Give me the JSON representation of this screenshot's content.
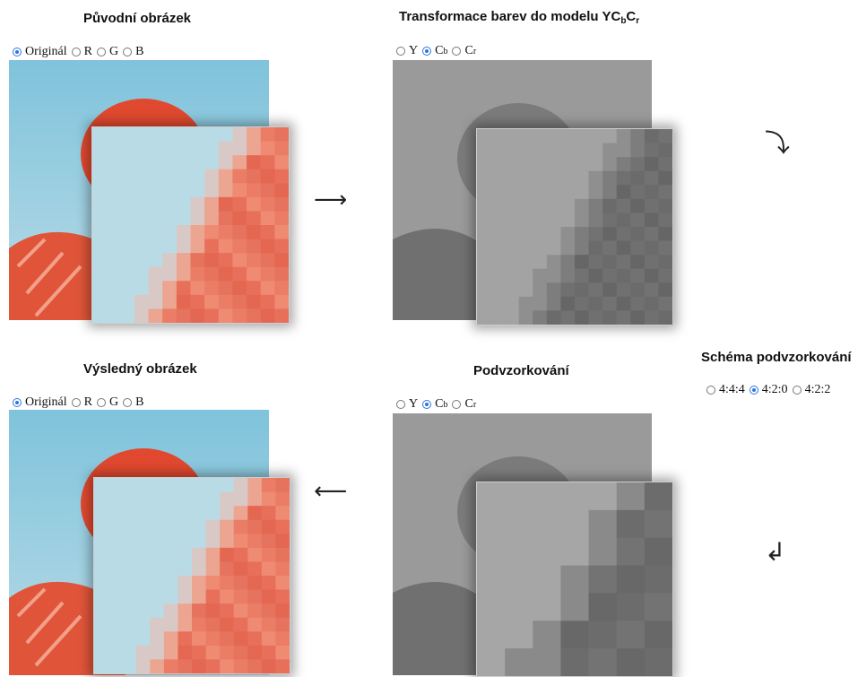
{
  "panels": {
    "original": {
      "title": "Původní obrázek",
      "options": [
        {
          "label": "Originál",
          "checked": true
        },
        {
          "label": "R",
          "checked": false
        },
        {
          "label": "G",
          "checked": false
        },
        {
          "label": "B",
          "checked": false
        }
      ]
    },
    "transform": {
      "title_prefix": "Transformace barev do modelu YC",
      "title_sub1": "b",
      "title_mid": "C",
      "title_sub2": "r",
      "options": [
        {
          "label": "Y",
          "sub": "",
          "checked": false
        },
        {
          "label": "C",
          "sub": "b",
          "checked": true
        },
        {
          "label": "C",
          "sub": "r",
          "checked": false
        }
      ]
    },
    "result": {
      "title": "Výsledný obrázek",
      "options": [
        {
          "label": "Originál",
          "checked": true
        },
        {
          "label": "R",
          "checked": false
        },
        {
          "label": "G",
          "checked": false
        },
        {
          "label": "B",
          "checked": false
        }
      ]
    },
    "subsampling": {
      "title": "Podvzorkování",
      "options": [
        {
          "label": "Y",
          "sub": "",
          "checked": false
        },
        {
          "label": "C",
          "sub": "b",
          "checked": true
        },
        {
          "label": "C",
          "sub": "r",
          "checked": false
        }
      ]
    },
    "scheme": {
      "title": "Schéma podvzorkování",
      "options": [
        {
          "label": "4:4:4",
          "checked": false
        },
        {
          "label": "4:2:0",
          "checked": true
        },
        {
          "label": "4:2:2",
          "checked": false
        }
      ]
    }
  },
  "arrows": {
    "right": "⟶",
    "left": "⟵",
    "down_right": "⤵",
    "down_left": "↲"
  }
}
